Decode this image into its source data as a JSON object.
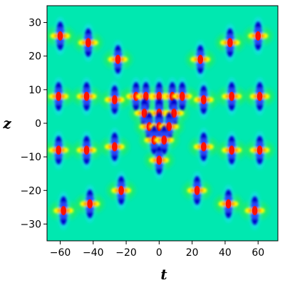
{
  "chart_data": {
    "type": "heatmap",
    "xlabel": "t",
    "ylabel": "z",
    "xlim": [
      -68,
      72
    ],
    "ylim": [
      -35,
      35
    ],
    "xticks": [
      -60,
      -40,
      -20,
      0,
      20,
      40,
      60
    ],
    "xtick_labels": [
      "−60",
      "−40",
      "−20",
      "0",
      "20",
      "40",
      "60"
    ],
    "yticks": [
      -30,
      -20,
      -10,
      0,
      10,
      20,
      30
    ],
    "ytick_labels": [
      "−30",
      "−20",
      "−10",
      "0",
      "10",
      "20",
      "30"
    ],
    "colormap": [
      "#0000cc",
      "#3355ff",
      "#22ddff",
      "#00e8b0",
      "#33ee33",
      "#ffff00",
      "#ff9900",
      "#ff1100"
    ],
    "background_color": "#00e8b0",
    "peaks": [
      {
        "t": -60,
        "z": 26
      },
      {
        "t": -43,
        "z": 24
      },
      {
        "t": -25,
        "z": 19
      },
      {
        "t": 25,
        "z": 19
      },
      {
        "t": 43,
        "z": 24
      },
      {
        "t": 60,
        "z": 26
      },
      {
        "t": -61,
        "z": 8
      },
      {
        "t": -44,
        "z": 8
      },
      {
        "t": -27,
        "z": 7
      },
      {
        "t": 27,
        "z": 7
      },
      {
        "t": 44,
        "z": 8
      },
      {
        "t": 61,
        "z": 8
      },
      {
        "t": -61,
        "z": -8
      },
      {
        "t": -44,
        "z": -8
      },
      {
        "t": -27,
        "z": -7
      },
      {
        "t": 27,
        "z": -7
      },
      {
        "t": 44,
        "z": -8
      },
      {
        "t": 61,
        "z": -8
      },
      {
        "t": -58,
        "z": -26
      },
      {
        "t": -42,
        "z": -24
      },
      {
        "t": -23,
        "z": -20
      },
      {
        "t": 23,
        "z": -20
      },
      {
        "t": 42,
        "z": -24
      },
      {
        "t": 58,
        "z": -26
      },
      {
        "t": -14,
        "z": 8
      },
      {
        "t": -8,
        "z": 8
      },
      {
        "t": 0,
        "z": 8
      },
      {
        "t": 8,
        "z": 8
      },
      {
        "t": 14,
        "z": 8
      },
      {
        "t": -9,
        "z": 3
      },
      {
        "t": 0,
        "z": 3
      },
      {
        "t": 9,
        "z": 3
      },
      {
        "t": -6,
        "z": -1
      },
      {
        "t": 0,
        "z": -1
      },
      {
        "t": 6,
        "z": -1
      },
      {
        "t": -3,
        "z": -5
      },
      {
        "t": 3,
        "z": -5
      },
      {
        "t": 0,
        "z": -11
      }
    ]
  }
}
